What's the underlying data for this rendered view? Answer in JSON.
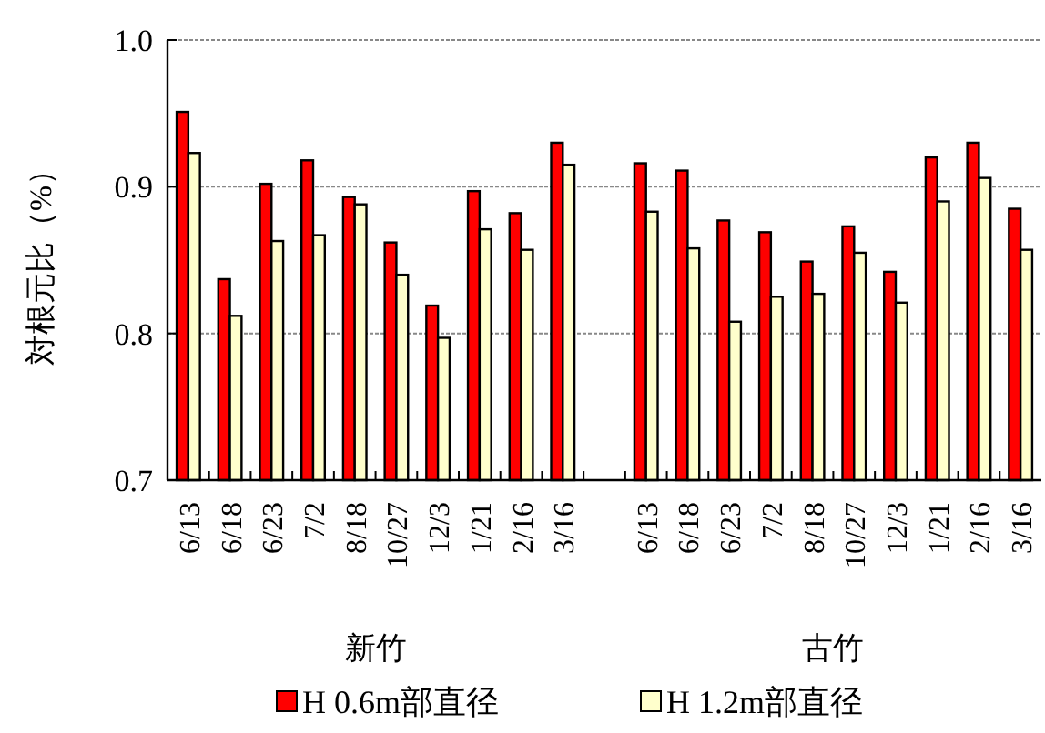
{
  "chart_data": {
    "type": "bar",
    "ylabel": "対根元比（%）",
    "categories": [
      "6/13",
      "6/18",
      "6/23",
      "7/2",
      "8/18",
      "10/27",
      "12/3",
      "1/21",
      "2/16",
      "3/16",
      null,
      "6/13",
      "6/18",
      "6/23",
      "7/2",
      "8/18",
      "10/27",
      "12/3",
      "1/21",
      "2/16",
      "3/16"
    ],
    "series": [
      {
        "name": "H 0.6m部直径",
        "color": "#ff0000",
        "values": [
          0.951,
          0.837,
          0.902,
          0.918,
          0.893,
          0.862,
          0.819,
          0.897,
          0.882,
          0.93,
          null,
          0.916,
          0.911,
          0.877,
          0.869,
          0.849,
          0.873,
          0.842,
          0.92,
          0.93,
          0.885
        ]
      },
      {
        "name": "H 1.2m部直径",
        "color": "#ffffcc",
        "values": [
          0.923,
          0.812,
          0.863,
          0.867,
          0.888,
          0.84,
          0.797,
          0.871,
          0.857,
          0.915,
          null,
          0.883,
          0.858,
          0.808,
          0.825,
          0.827,
          0.855,
          0.821,
          0.89,
          0.906,
          0.857
        ]
      }
    ],
    "annotations": [
      "新竹",
      "古竹"
    ],
    "ylim": [
      0.7,
      1.0
    ],
    "yticks": [
      {
        "value": 0.7,
        "label": "0.7"
      },
      {
        "value": 0.8,
        "label": "0.8"
      },
      {
        "value": 0.9,
        "label": "0.9"
      },
      {
        "value": 1.0,
        "label": "1.0"
      }
    ],
    "grid": "y",
    "legend": "bottom"
  }
}
